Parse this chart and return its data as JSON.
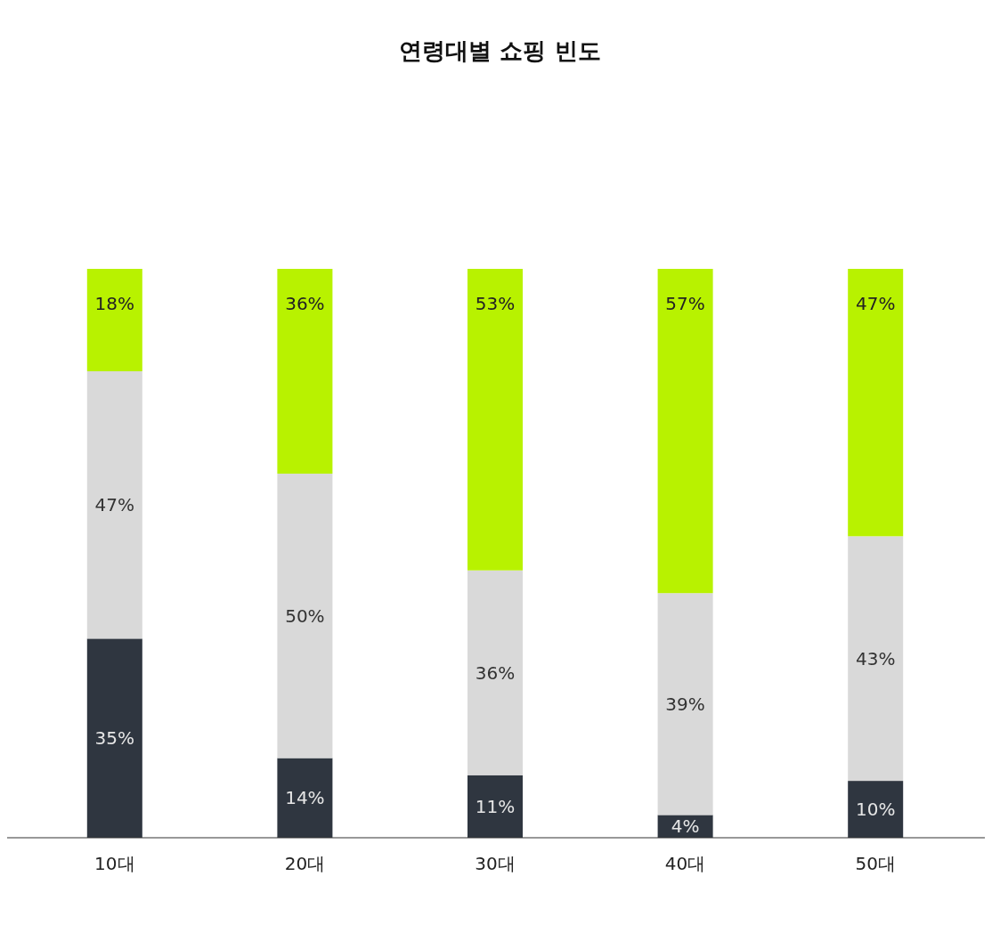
{
  "chart_data": {
    "type": "bar",
    "title": "연령대별 쇼핑 빈도",
    "stacked": true,
    "categories": [
      "10대",
      "20대",
      "30대",
      "40대",
      "50대"
    ],
    "series": [
      {
        "color": "#2f3640",
        "values": [
          35,
          14,
          11,
          4,
          10
        ],
        "value_labels": [
          "35%",
          "14%",
          "11%",
          "4%",
          "10%"
        ]
      },
      {
        "color": "#d9d9d9",
        "values": [
          47,
          50,
          36,
          39,
          43
        ],
        "value_labels": [
          "47%",
          "50%",
          "36%",
          "39%",
          "43%"
        ]
      },
      {
        "color": "#b8f200",
        "values": [
          18,
          36,
          53,
          57,
          47
        ],
        "value_labels": [
          "18%",
          "36%",
          "53%",
          "57%",
          "47%"
        ]
      }
    ]
  }
}
